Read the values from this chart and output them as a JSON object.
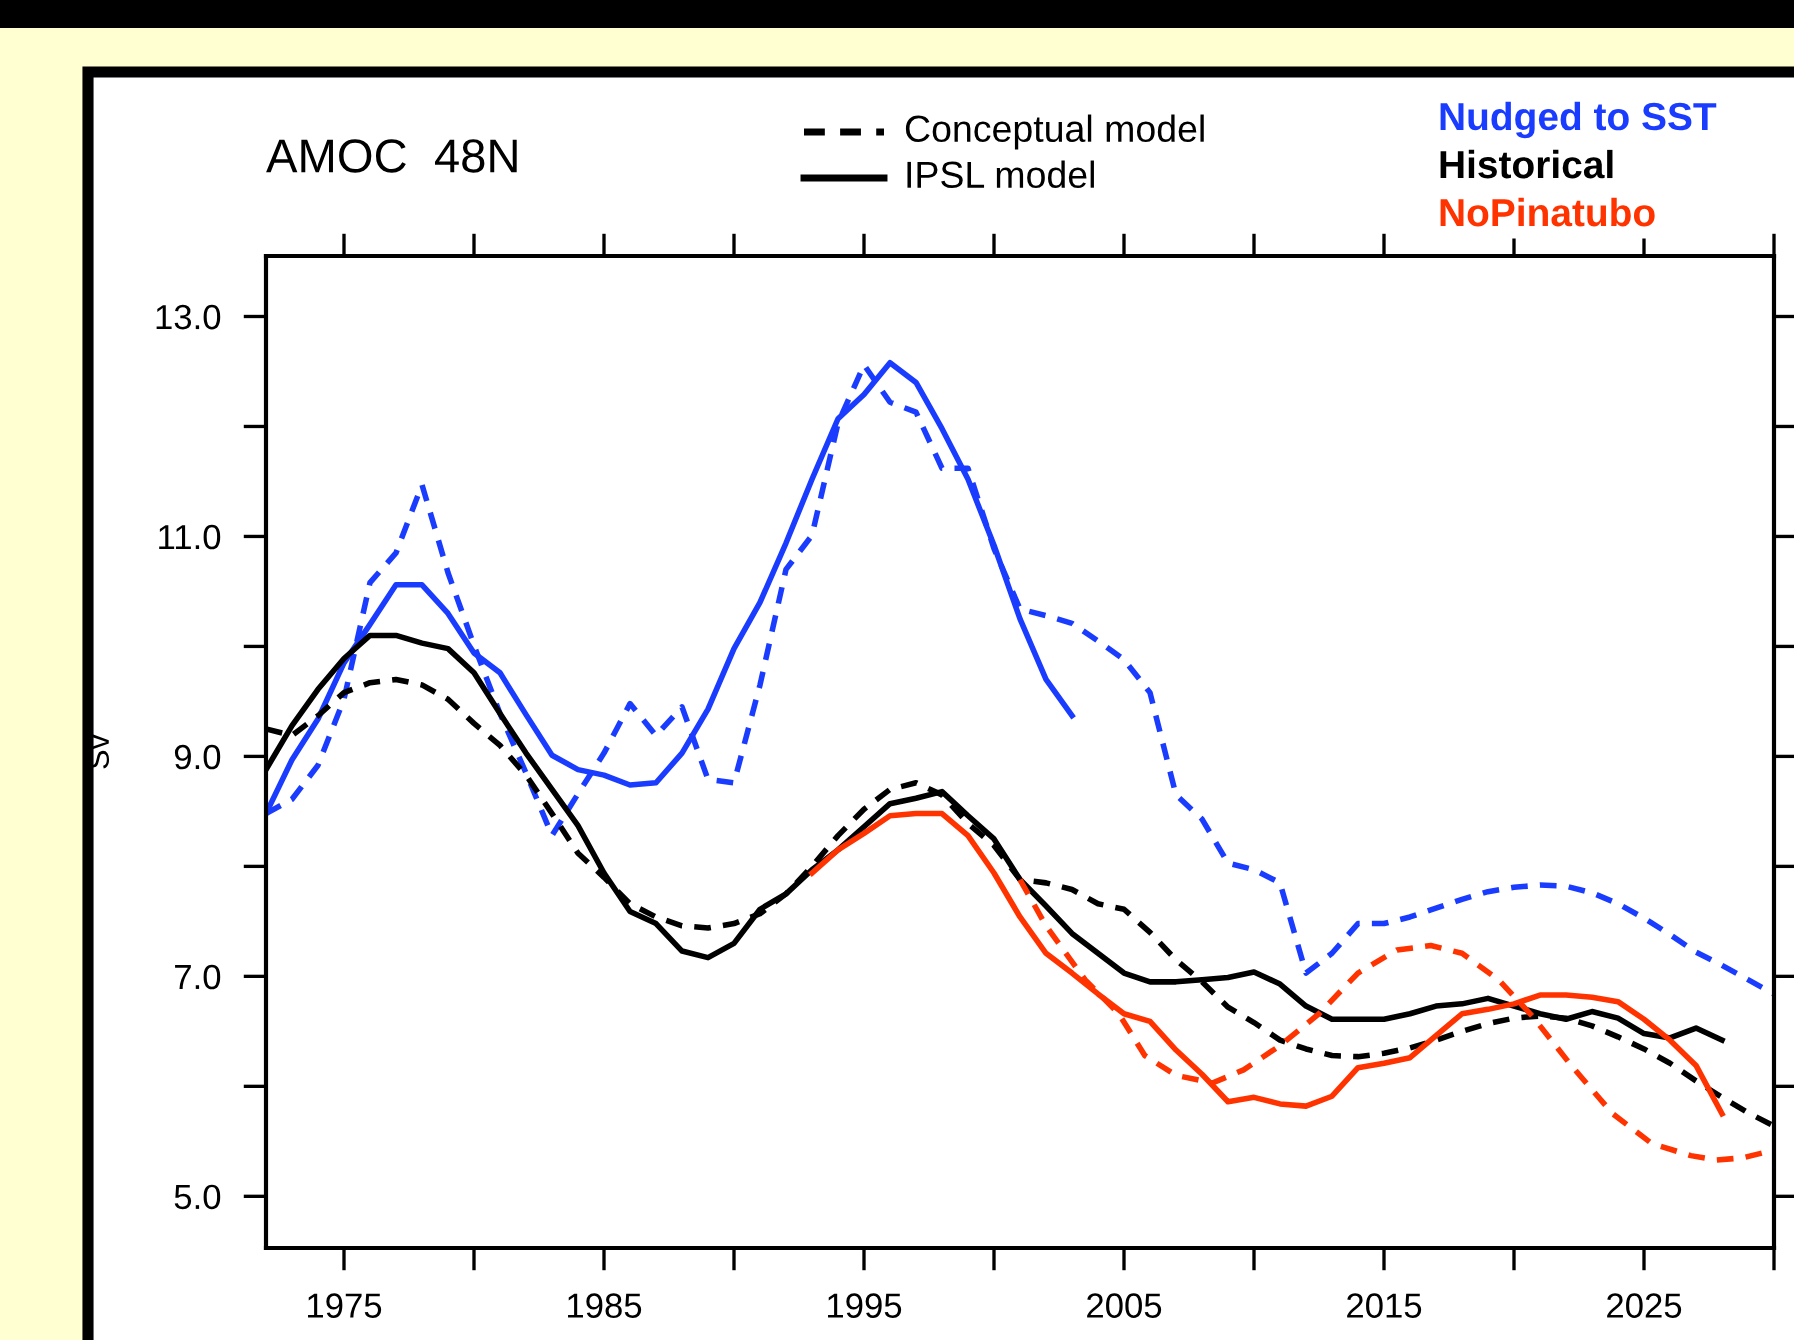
{
  "chart_data": {
    "type": "line",
    "title": "AMOC  48N",
    "ylabel": "Sv",
    "annotations": [
      "Conceptual model",
      "IPSL model"
    ],
    "xlim": [
      1972,
      2030
    ],
    "xticks": [
      1975,
      {
        "value": 1980,
        "label": null
      },
      1985,
      {
        "value": 1990,
        "label": null
      },
      1995,
      {
        "value": 2000,
        "label": null
      },
      2005,
      {
        "value": 2010,
        "label": null
      },
      2015,
      {
        "value": 2020,
        "label": null
      },
      2025,
      {
        "value": 2030,
        "label": null
      }
    ],
    "ylim": [
      4.53,
      13.55
    ],
    "yticks": [
      {
        "value": 5,
        "label": "5.0"
      },
      {
        "value": 6,
        "label": null
      },
      {
        "value": 7,
        "label": "7.0"
      },
      {
        "value": 8,
        "label": null
      },
      {
        "value": 9,
        "label": "9.0"
      },
      {
        "value": 10,
        "label": null
      },
      {
        "value": 11,
        "label": "11.0"
      },
      {
        "value": 12,
        "label": null
      },
      {
        "value": 13,
        "label": "13.0"
      }
    ],
    "grid": false,
    "legend": "top",
    "series": [
      {
        "name": "Nudged to SST",
        "color": "#1a3cff",
        "line_style": "dashed",
        "x": [
          1972,
          1973,
          1974,
          1975,
          1976,
          1977,
          1978,
          1979,
          1980,
          1981,
          1982,
          1983,
          1984,
          1985,
          1986,
          1987,
          1988,
          1989,
          1990,
          1991,
          1992,
          1993,
          1994,
          1995,
          1996,
          1997,
          1998,
          1999,
          2000,
          2001,
          2002,
          2003,
          2004,
          2005,
          2006,
          2007,
          2008,
          2009,
          2010,
          2011,
          2012,
          2013,
          2014,
          2015,
          2016,
          2017,
          2018,
          2019,
          2020,
          2021,
          2022,
          2023,
          2024,
          2025,
          2026,
          2027,
          2028,
          2029,
          2030
        ],
        "values": [
          8.48,
          8.61,
          8.92,
          9.52,
          10.58,
          10.85,
          11.47,
          10.67,
          10.01,
          9.39,
          8.85,
          8.28,
          8.66,
          9.03,
          9.48,
          9.19,
          9.45,
          8.79,
          8.76,
          9.65,
          10.7,
          11.01,
          12.03,
          12.56,
          12.22,
          12.13,
          11.62,
          11.62,
          10.89,
          10.34,
          10.28,
          10.21,
          10.05,
          9.88,
          9.58,
          8.65,
          8.43,
          8.03,
          7.97,
          7.85,
          7.03,
          7.21,
          7.48,
          7.48,
          7.54,
          7.62,
          7.7,
          7.77,
          7.81,
          7.83,
          7.82,
          7.76,
          7.66,
          7.53,
          7.38,
          7.22,
          7.1,
          6.97,
          6.84
        ]
      },
      {
        "color": "#1a3cff",
        "line_style": "solid",
        "x": [
          1972,
          1973,
          1974,
          1975,
          1976,
          1977,
          1978,
          1979,
          1980,
          1981,
          1982,
          1983,
          1984,
          1985,
          1986,
          1987,
          1988,
          1989,
          1990,
          1991,
          1992,
          1993,
          1994,
          1995,
          1996,
          1997,
          1998,
          1999,
          2000,
          2001,
          2002,
          2003
        ],
        "values": [
          8.48,
          8.97,
          9.34,
          9.85,
          10.2,
          10.56,
          10.56,
          10.3,
          9.94,
          9.76,
          9.38,
          9.01,
          8.88,
          8.83,
          8.74,
          8.76,
          9.03,
          9.43,
          9.98,
          10.4,
          10.94,
          11.52,
          12.07,
          12.29,
          12.58,
          12.4,
          11.98,
          11.52,
          10.92,
          10.25,
          9.7,
          9.37
        ]
      },
      {
        "name": "Historical",
        "color": "#000000",
        "line_style": "dashed",
        "x": [
          1972,
          1973,
          1974,
          1975,
          1976,
          1977,
          1978,
          1979,
          1980,
          1981,
          1982,
          1983,
          1984,
          1985,
          1986,
          1987,
          1988,
          1989,
          1990,
          1991,
          1992,
          1993,
          1994,
          1995,
          1996,
          1997,
          1998,
          1999,
          2000,
          2001,
          2002,
          2003,
          2004,
          2005,
          2006,
          2007,
          2008,
          2009,
          2010,
          2011,
          2012,
          2013,
          2014,
          2015,
          2016,
          2017,
          2018,
          2019,
          2020,
          2021,
          2022,
          2023,
          2024,
          2025,
          2026,
          2027,
          2028,
          2029,
          2030
        ],
        "values": [
          9.25,
          9.19,
          9.37,
          9.58,
          9.67,
          9.7,
          9.65,
          9.52,
          9.3,
          9.1,
          8.83,
          8.48,
          8.12,
          7.9,
          7.66,
          7.54,
          7.46,
          7.44,
          7.48,
          7.57,
          7.75,
          8.0,
          8.28,
          8.52,
          8.7,
          8.76,
          8.65,
          8.39,
          8.19,
          7.88,
          7.85,
          7.79,
          7.66,
          7.61,
          7.4,
          7.15,
          6.95,
          6.72,
          6.58,
          6.42,
          6.34,
          6.28,
          6.27,
          6.3,
          6.35,
          6.42,
          6.5,
          6.57,
          6.62,
          6.64,
          6.62,
          6.55,
          6.45,
          6.34,
          6.21,
          6.05,
          5.9,
          5.76,
          5.64
        ]
      },
      {
        "color": "#000000",
        "line_style": "solid",
        "x": [
          1972,
          1973,
          1974,
          1975,
          1976,
          1977,
          1978,
          1979,
          1980,
          1981,
          1982,
          1983,
          1984,
          1985,
          1986,
          1987,
          1988,
          1989,
          1990,
          1991,
          1992,
          1993,
          1994,
          1995,
          1996,
          1997,
          1998,
          1999,
          2000,
          2001,
          2002,
          2003,
          2004,
          2005,
          2006,
          2007,
          2008,
          2009,
          2010,
          2011,
          2012,
          2013,
          2014,
          2015,
          2016,
          2017,
          2018,
          2019,
          2020,
          2021,
          2022,
          2023,
          2024,
          2025,
          2026,
          2027,
          2028
        ],
        "values": [
          8.88,
          9.28,
          9.61,
          9.89,
          10.1,
          10.1,
          10.03,
          9.98,
          9.76,
          9.39,
          9.03,
          8.7,
          8.37,
          7.94,
          7.59,
          7.48,
          7.23,
          7.17,
          7.3,
          7.61,
          7.75,
          7.97,
          8.15,
          8.36,
          8.57,
          8.62,
          8.68,
          8.46,
          8.25,
          7.88,
          7.64,
          7.39,
          7.21,
          7.03,
          6.95,
          6.95,
          6.97,
          6.99,
          7.04,
          6.93,
          6.73,
          6.61,
          6.61,
          6.61,
          6.66,
          6.73,
          6.75,
          6.8,
          6.73,
          6.66,
          6.61,
          6.68,
          6.62,
          6.48,
          6.44,
          6.53,
          6.42
        ]
      },
      {
        "name": "NoPinatubo",
        "color": "#ff3300",
        "line_style": "dashed",
        "x": [
          2001,
          2002,
          2003.5,
          2004.8,
          2005.8,
          2007,
          2008.4,
          2009.6,
          2011,
          2012.5,
          2014,
          2015.5,
          2016.8,
          2018,
          2019.4,
          2020.7,
          2022.2,
          2023.8,
          2025.3,
          2026.8,
          2027.8,
          2028.8,
          2030
        ],
        "values": [
          7.88,
          7.46,
          6.97,
          6.66,
          6.28,
          6.1,
          6.03,
          6.15,
          6.37,
          6.66,
          7.03,
          7.24,
          7.28,
          7.21,
          6.97,
          6.64,
          6.19,
          5.75,
          5.48,
          5.37,
          5.33,
          5.35,
          5.42
        ]
      },
      {
        "color": "#ff3300",
        "line_style": "solid",
        "x": [
          1993,
          1994,
          1995,
          1996,
          1997,
          1998,
          1999,
          2000,
          2001,
          2002,
          2003,
          2004,
          2005,
          2006,
          2007,
          2008,
          2009,
          2010,
          2011,
          2012,
          2013,
          2014,
          2015,
          2016,
          2017,
          2018,
          2019,
          2020,
          2021,
          2022,
          2023,
          2024,
          2025,
          2026,
          2027,
          2028
        ],
        "values": [
          7.94,
          8.15,
          8.3,
          8.46,
          8.48,
          8.48,
          8.28,
          7.94,
          7.54,
          7.21,
          7.03,
          6.84,
          6.66,
          6.59,
          6.33,
          6.11,
          5.86,
          5.9,
          5.84,
          5.82,
          5.91,
          6.17,
          6.21,
          6.26,
          6.46,
          6.66,
          6.7,
          6.75,
          6.83,
          6.83,
          6.81,
          6.77,
          6.61,
          6.42,
          6.19,
          5.75
        ]
      }
    ]
  }
}
